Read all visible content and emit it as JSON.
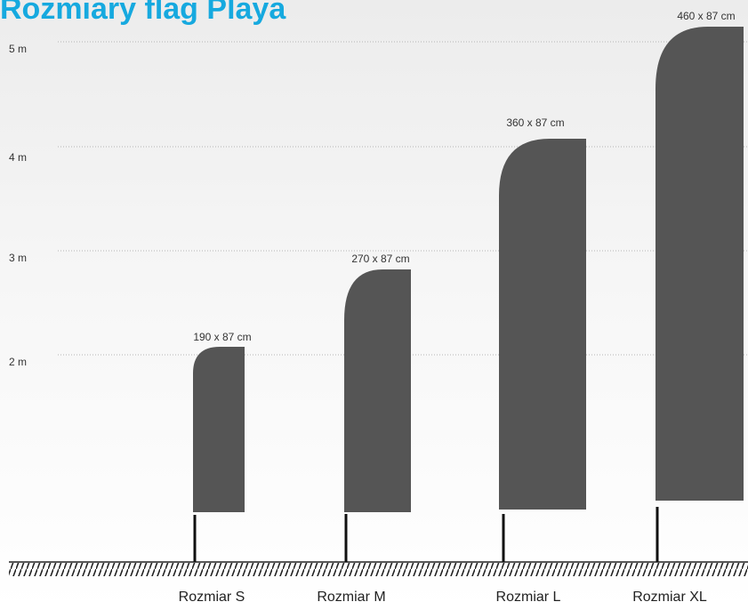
{
  "header": {
    "title": "Rozmiary flag Playa"
  },
  "scale": [
    "5 m",
    "4 m",
    "3 m",
    "2 m"
  ],
  "flags": [
    {
      "size": "190 x 87 cm",
      "name": "Rozmiar S"
    },
    {
      "size": "270 x 87 cm",
      "name": "Rozmiar M"
    },
    {
      "size": "360 x 87 cm",
      "name": "Rozmiar L"
    },
    {
      "size": "460 x 87 cm",
      "name": "Rozmiar XL"
    }
  ]
}
